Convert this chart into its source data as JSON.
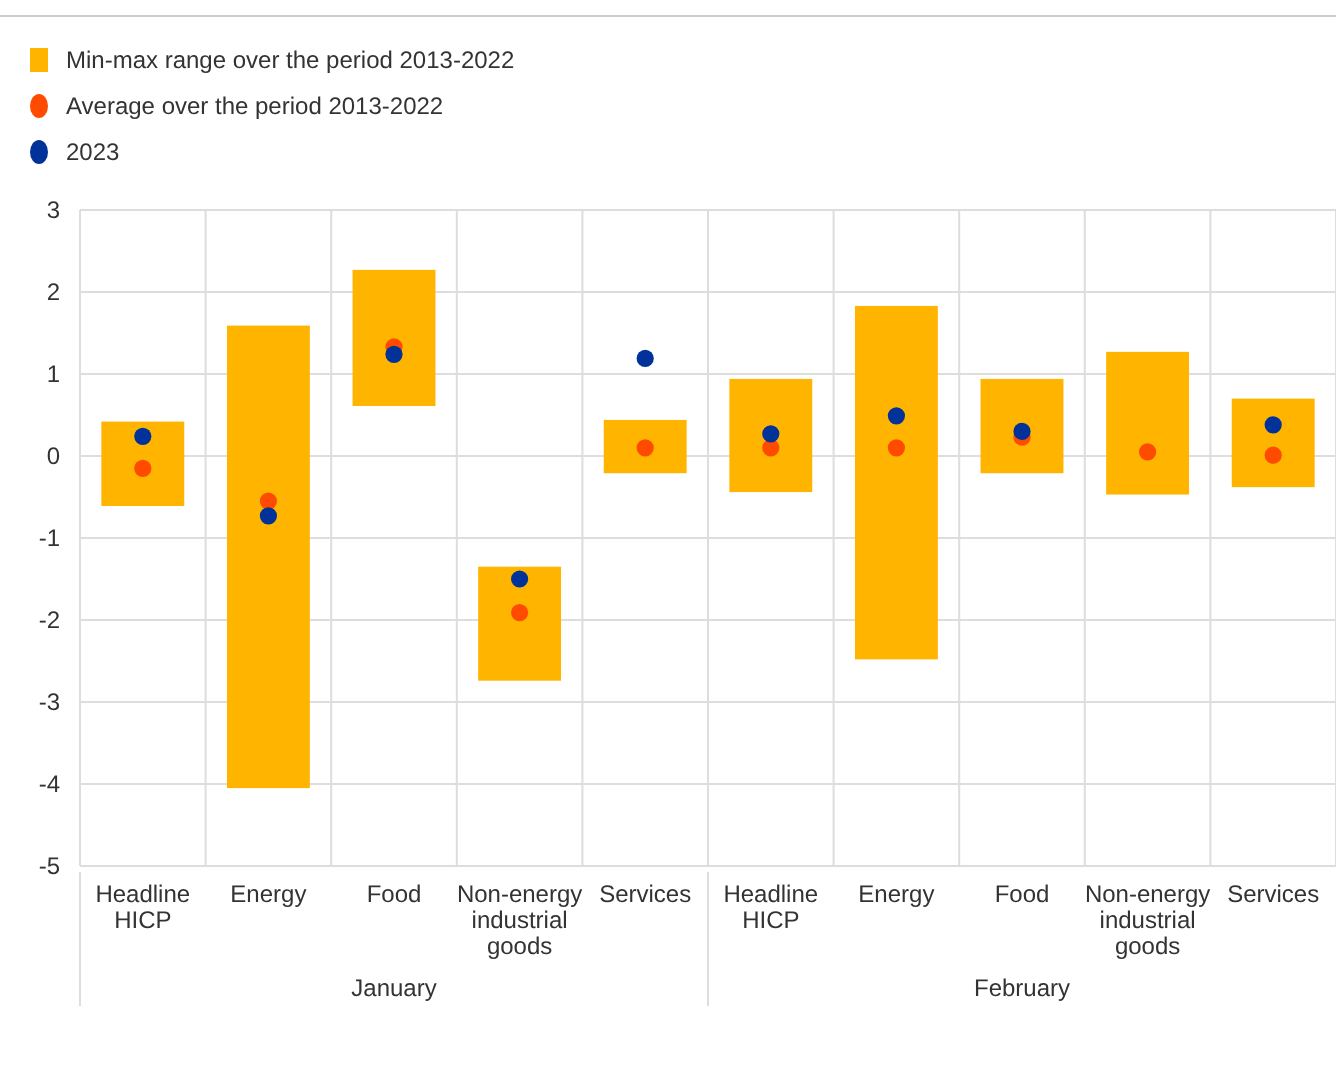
{
  "chart_data": {
    "type": "bar",
    "categories": [
      "Headline HICP",
      "Energy",
      "Food",
      "Non-energy industrial goods",
      "Services",
      "Headline HICP",
      "Energy",
      "Food",
      "Non-energy industrial goods",
      "Services"
    ],
    "series": [
      {
        "name": "Min-max range over the period 2013-2022",
        "color": "#ffb400",
        "base": [
          -0.61,
          -4.05,
          0.61,
          -2.74,
          -0.21,
          -0.44,
          -2.48,
          -0.21,
          -0.47,
          -0.38
        ],
        "values": [
          1.03,
          5.64,
          1.66,
          1.39,
          0.65,
          1.38,
          4.31,
          1.15,
          1.74,
          1.08
        ]
      },
      {
        "name": "Average over the period 2013-2022",
        "type": "scatter",
        "color": "#ff4b00",
        "marker": "circle",
        "values": [
          -0.15,
          -0.55,
          1.33,
          -1.91,
          0.1,
          0.1,
          0.1,
          0.23,
          0.05,
          0.01
        ]
      },
      {
        "name": "2023",
        "type": "scatter",
        "color": "#003299",
        "marker": "circle",
        "values": [
          0.24,
          -0.73,
          1.24,
          -1.5,
          1.19,
          0.27,
          0.49,
          0.3,
          null,
          0.38
        ]
      }
    ],
    "ylim": [
      -5,
      3
    ],
    "yticks": [
      -5,
      -4,
      -3,
      -2,
      -1,
      0,
      1,
      2,
      3
    ],
    "grid": true,
    "legend": "top left",
    "annotations": [
      "January",
      "February"
    ]
  }
}
